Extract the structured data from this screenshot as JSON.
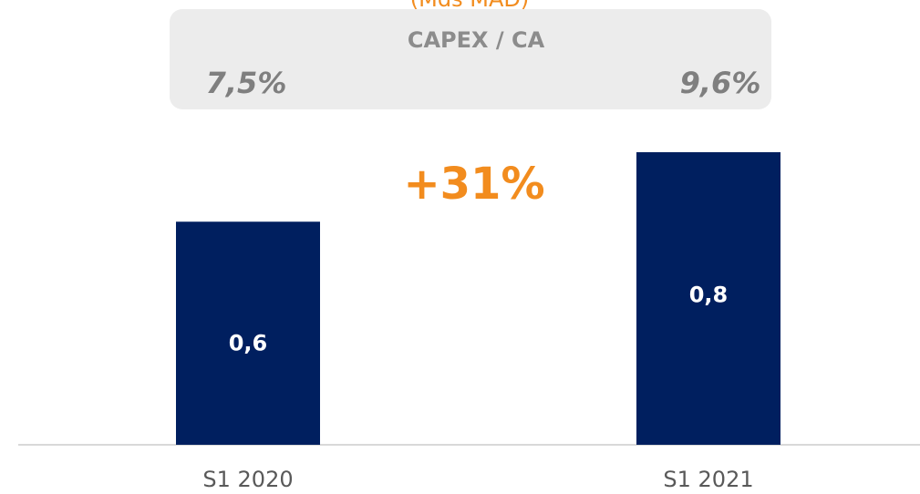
{
  "chart_data": {
    "type": "bar",
    "subtitle": "(Mds MAD)",
    "categories": [
      "S1 2020",
      "S1 2021"
    ],
    "values": [
      0.61,
      0.8
    ],
    "value_labels": [
      "0,6",
      "0,8"
    ],
    "color": "#001f5f",
    "annotation": "+31%",
    "ratio_box": {
      "title": "CAPEX / CA",
      "values": [
        7.5,
        9.6
      ],
      "value_labels": [
        "7,5%",
        "9,6%"
      ]
    }
  }
}
